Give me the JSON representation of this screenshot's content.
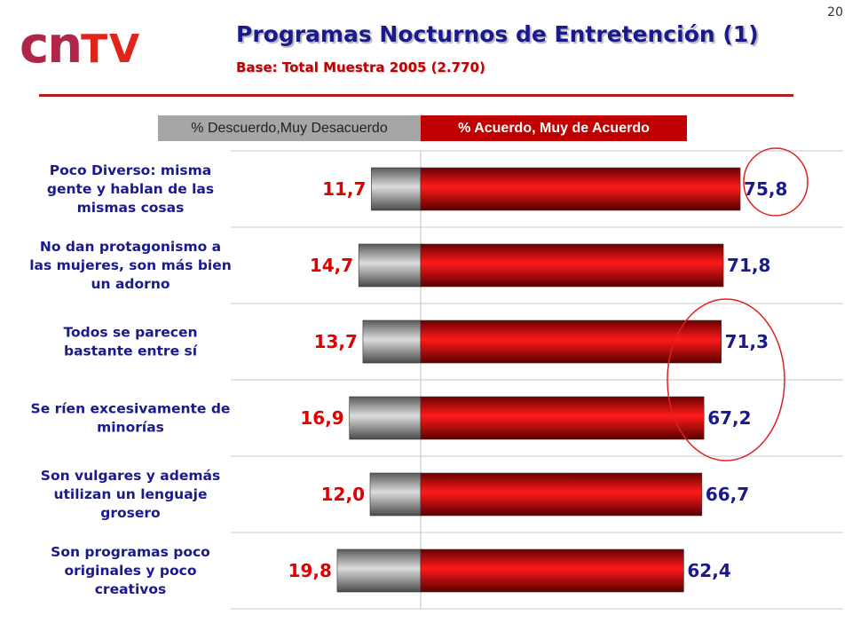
{
  "page_number": "20",
  "logo": {
    "part1": "cn",
    "part2": "TV"
  },
  "header": {
    "title": "Programas Nocturnos de Entretención (1)",
    "subtitle": "Base: Total Muestra 2005 (2.770)"
  },
  "legend": {
    "negative": "% Descuerdo,Muy Desacuerdo",
    "positive": "% Acuerdo, Muy de Acuerdo"
  },
  "colors": {
    "positive_bar": "#e00000",
    "negative_bar": "#a6a6a6",
    "label_text": "#1a1a8c",
    "negative_value": "#e00000",
    "circle": "#e02020"
  },
  "chart_data": {
    "type": "bar",
    "orientation": "horizontal",
    "stacked": "diverging",
    "categories": [
      [
        "Poco Diverso: misma",
        "gente y hablan de las",
        "mismas cosas"
      ],
      [
        "No dan protagonismo a",
        "las mujeres, son más bien",
        "un adorno"
      ],
      [
        "Todos se parecen",
        "bastante entre sí"
      ],
      [
        "Se ríen excesivamente de",
        "minorías"
      ],
      [
        "Son vulgares y además",
        "utilizan un lenguaje",
        "grosero"
      ],
      [
        "Son programas poco",
        "originales y poco",
        "creativos"
      ]
    ],
    "series": [
      {
        "name": "% Descuerdo,Muy Desacuerdo",
        "values": [
          11.7,
          14.7,
          13.7,
          16.9,
          12.0,
          19.8
        ],
        "labels": [
          "11,7",
          "14,7",
          "13,7",
          "16,9",
          "12,0",
          "19,8"
        ]
      },
      {
        "name": "% Acuerdo, Muy de Acuerdo",
        "values": [
          75.8,
          71.8,
          71.3,
          67.2,
          66.7,
          62.4
        ],
        "labels": [
          "75,8",
          "71,8",
          "71,3",
          "67,2",
          "66,7",
          "62,4"
        ]
      }
    ],
    "grid": "horizontal separators between categories",
    "highlighted": [
      "75,8",
      "71,3 to 67,2"
    ]
  }
}
